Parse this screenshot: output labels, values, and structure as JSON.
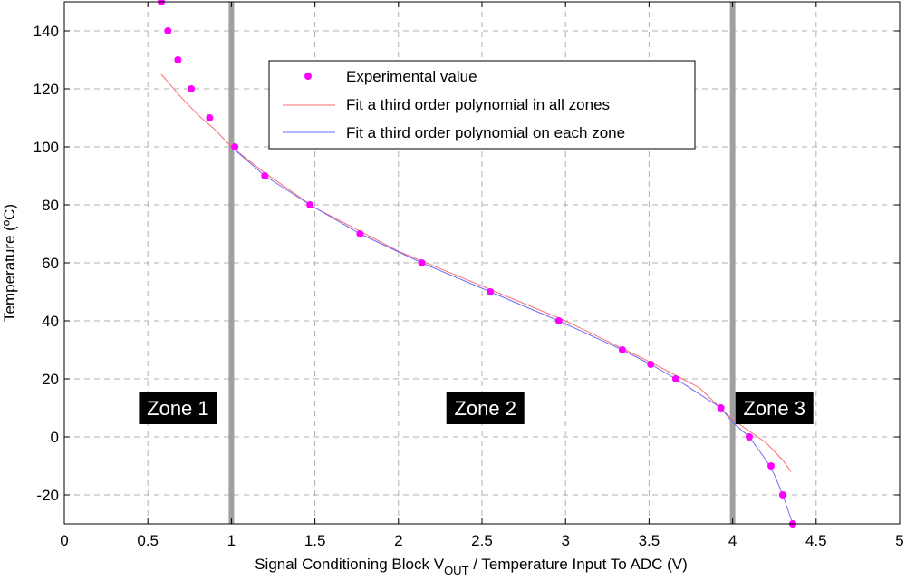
{
  "chart_data": {
    "type": "scatter",
    "xlabel_main": "Signal Conditioning Block V",
    "xlabel_sub": "OUT",
    "xlabel_rest": "  /  Temperature Input To ADC (V)",
    "ylabel": "Temperature (ºC)",
    "xlim": [
      0,
      5
    ],
    "ylim": [
      -30,
      150
    ],
    "x_ticks": [
      0,
      0.5,
      1,
      1.5,
      2,
      2.5,
      3,
      3.5,
      4,
      4.5,
      5
    ],
    "x_tick_labels": [
      "0",
      "0.5",
      "1",
      "1.5",
      "2",
      "2.5",
      "3",
      "3.5",
      "4",
      "4.5",
      "5"
    ],
    "y_ticks": [
      -20,
      0,
      20,
      40,
      60,
      80,
      100,
      120,
      140
    ],
    "y_tick_labels": [
      "-20",
      "0",
      "20",
      "40",
      "60",
      "80",
      "100",
      "120",
      "140"
    ],
    "grid": true,
    "legend_position": "top-center",
    "zone_boundaries": [
      1.0,
      4.0
    ],
    "zones": [
      {
        "label": "Zone 1",
        "x": 0.68,
        "y": 10
      },
      {
        "label": "Zone 2",
        "x": 2.52,
        "y": 10
      },
      {
        "label": "Zone 3",
        "x": 4.25,
        "y": 10
      }
    ],
    "series": [
      {
        "name": "Experimental value",
        "kind": "points",
        "color": "#ff00ff",
        "x": [
          0.58,
          0.62,
          0.68,
          0.76,
          0.87,
          1.02,
          1.2,
          1.47,
          1.77,
          2.14,
          2.55,
          2.96,
          3.34,
          3.51,
          3.66,
          3.93,
          4.1,
          4.23,
          4.3,
          4.36
        ],
        "y": [
          150,
          140,
          130,
          120,
          110,
          100,
          90,
          80,
          70,
          60,
          50,
          40,
          30,
          25,
          20,
          10,
          0,
          -10,
          -20,
          -30
        ]
      },
      {
        "name": "Fit a third order polynomial in all zones",
        "kind": "line",
        "color": "#ff6b6b",
        "x": [
          0.58,
          0.7,
          0.8,
          0.9,
          1.0,
          1.2,
          1.5,
          2.0,
          2.5,
          3.0,
          3.5,
          3.8,
          4.0,
          4.1,
          4.2,
          4.3,
          4.35
        ],
        "y": [
          125,
          117,
          111,
          106,
          100,
          91,
          79,
          64,
          52,
          40,
          26,
          17,
          6,
          2,
          -2,
          -8,
          -12
        ]
      },
      {
        "name": "Fit a third order polynomial on each zone",
        "kind": "line",
        "color": "#6b6bff",
        "x": [
          1.0,
          1.2,
          1.47,
          1.77,
          2.14,
          2.55,
          2.96,
          3.34,
          3.51,
          3.66,
          3.93,
          4.0,
          4.1,
          4.2,
          4.25,
          4.3,
          4.36
        ],
        "y": [
          100,
          90,
          80,
          70,
          60,
          50,
          40,
          30,
          25,
          20,
          10,
          5,
          0,
          -8,
          -13,
          -20,
          -30
        ]
      }
    ]
  }
}
